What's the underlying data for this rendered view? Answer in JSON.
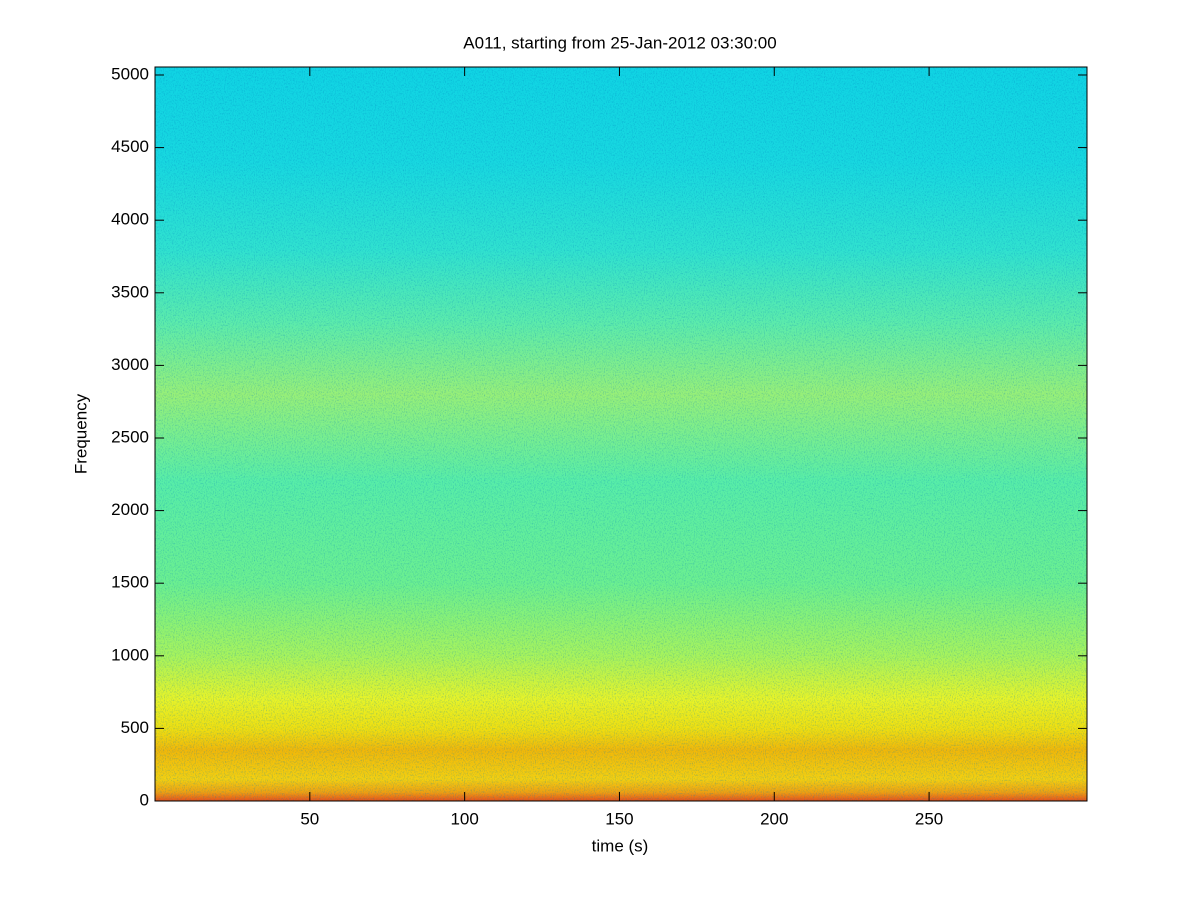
{
  "chart_data": {
    "type": "spectrogram",
    "title": "A011, starting from 25-Jan-2012 03:30:00",
    "x_label": "time (s)",
    "y_label": "Frequency",
    "xlim": [
      0,
      301
    ],
    "ylim": [
      0,
      5055
    ],
    "xticks": [
      50,
      100,
      150,
      200,
      250
    ],
    "yticks": [
      0,
      500,
      1000,
      1500,
      2000,
      2500,
      3000,
      3500,
      4000,
      4500,
      5000
    ],
    "color_profile": [
      {
        "frequency": 0,
        "color": "#e8501a"
      },
      {
        "frequency": 60,
        "color": "#f0a010"
      },
      {
        "frequency": 150,
        "color": "#f4d010"
      },
      {
        "frequency": 350,
        "color": "#f2b808"
      },
      {
        "frequency": 500,
        "color": "#f0e010"
      },
      {
        "frequency": 700,
        "color": "#e8f428"
      },
      {
        "frequency": 1000,
        "color": "#a8f45c"
      },
      {
        "frequency": 1500,
        "color": "#6cf090"
      },
      {
        "frequency": 2200,
        "color": "#58eea8"
      },
      {
        "frequency": 2800,
        "color": "#98f078"
      },
      {
        "frequency": 3300,
        "color": "#5cecac"
      },
      {
        "frequency": 3800,
        "color": "#30e2d0"
      },
      {
        "frequency": 4400,
        "color": "#18d8e0"
      },
      {
        "frequency": 5055,
        "color": "#10d4e4"
      }
    ]
  }
}
